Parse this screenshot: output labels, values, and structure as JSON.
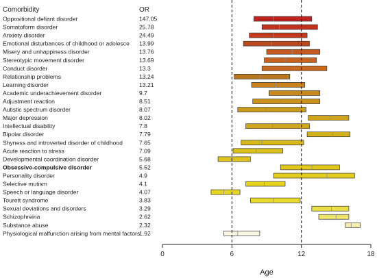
{
  "chart_data": {
    "type": "bar",
    "subtype": "floating-range",
    "headers": {
      "category": "Comorbidity",
      "value": "OR"
    },
    "xlabel": "Age",
    "xlim": [
      0,
      18
    ],
    "xticks": [
      0,
      6,
      12,
      18
    ],
    "reference_lines": [
      6,
      12
    ],
    "grid": false,
    "legend": "none",
    "rows": [
      {
        "label": "Oppositional defiant disorder",
        "or": "147.05",
        "start": 7.9,
        "median": 9.6,
        "end": 12.9,
        "color": "#c0231f",
        "bold": false
      },
      {
        "label": "Somatoform disorder",
        "or": "25.78",
        "start": 8.6,
        "median": 10.1,
        "end": 13.4,
        "color": "#c0311e",
        "bold": false
      },
      {
        "label": "Anxiety disorder",
        "or": "24.49",
        "start": 7.5,
        "median": 9.6,
        "end": 12.5,
        "color": "#c23a1f",
        "bold": false
      },
      {
        "label": "Emotional disturbances of childhood or adolesce",
        "or": "13.99",
        "start": 7.0,
        "median": 9.4,
        "end": 12.7,
        "color": "#b84a1e",
        "bold": false
      },
      {
        "label": "Misery and unhappiness disorder",
        "or": "13.76",
        "start": 9.0,
        "median": 11.2,
        "end": 13.6,
        "color": "#c65a1f",
        "bold": false
      },
      {
        "label": "Stereotypic movement disorder",
        "or": "13.69",
        "start": 8.8,
        "median": 10.6,
        "end": 13.3,
        "color": "#c8621e",
        "bold": false
      },
      {
        "label": "Conduct disorder",
        "or": "13.3",
        "start": 8.6,
        "median": 11.4,
        "end": 14.2,
        "color": "#c96b1e",
        "bold": false
      },
      {
        "label": "Relationship problems",
        "or": "13.24",
        "start": 6.2,
        "median": 8.4,
        "end": 11.0,
        "color": "#b8761e",
        "bold": false
      },
      {
        "label": "Learning disorder",
        "or": "13.21",
        "start": 7.7,
        "median": 9.8,
        "end": 12.3,
        "color": "#c9801e",
        "bold": false
      },
      {
        "label": "Academic underachievement disorder",
        "or": "9.7",
        "start": 9.2,
        "median": 11.5,
        "end": 13.6,
        "color": "#c98a1d",
        "bold": false
      },
      {
        "label": "Adjustment reaction",
        "or": "8.51",
        "start": 7.8,
        "median": 10.2,
        "end": 13.6,
        "color": "#c9921d",
        "bold": false
      },
      {
        "label": "Autistic spectrum disorder",
        "or": "8.07",
        "start": 6.5,
        "median": 8.9,
        "end": 12.4,
        "color": "#c99a1d",
        "bold": false
      },
      {
        "label": "Major depression",
        "or": "8.02",
        "start": 12.6,
        "median": 14.5,
        "end": 16.1,
        "color": "#cfa31d",
        "bold": false
      },
      {
        "label": " Intellectual disability",
        "or": "7.8",
        "start": 7.2,
        "median": 9.5,
        "end": 12.7,
        "color": "#d1a81d",
        "bold": false
      },
      {
        "label": "Bipolar disorder",
        "or": "7.79",
        "start": 12.5,
        "median": 14.7,
        "end": 16.2,
        "color": "#d3b21c",
        "bold": false
      },
      {
        "label": "Shyness and introverted disorder of childhood",
        "or": "7.65",
        "start": 6.8,
        "median": 8.6,
        "end": 12.2,
        "color": "#d5b81c",
        "bold": false
      },
      {
        "label": "Acute reaction to stress",
        "or": "7.09",
        "start": 6.1,
        "median": 8.1,
        "end": 10.4,
        "color": "#d9bf1c",
        "bold": false
      },
      {
        "label": "Developmental coordination disorder",
        "or": "5.68",
        "start": 4.8,
        "median": 6.0,
        "end": 7.6,
        "color": "#dcc31d",
        "bold": false
      },
      {
        "label": "Obsessive-compulsive disorder",
        "or": "5.52",
        "start": 10.2,
        "median": 12.9,
        "end": 15.3,
        "color": "#dfc71d",
        "bold": true
      },
      {
        "label": "Personality disorder",
        "or": "4.9",
        "start": 9.6,
        "median": 14.2,
        "end": 16.6,
        "color": "#e3cd1e",
        "bold": false
      },
      {
        "label": "Selective mutism",
        "or": "4.1",
        "start": 7.2,
        "median": 8.8,
        "end": 10.6,
        "color": "#e5d31f",
        "bold": false
      },
      {
        "label": "Speech or language disorder",
        "or": "4.07",
        "start": 4.2,
        "median": 5.3,
        "end": 6.7,
        "color": "#e8d722",
        "bold": false
      },
      {
        "label": "Tourett syndrome",
        "or": "3.83",
        "start": 7.6,
        "median": 9.6,
        "end": 11.9,
        "color": "#eadb2a",
        "bold": false
      },
      {
        "label": "Sexual deviations and disorders",
        "or": "3.29",
        "start": 12.9,
        "median": 14.6,
        "end": 16.1,
        "color": "#ede14a",
        "bold": false
      },
      {
        "label": "Schizophreina",
        "or": "2.62",
        "start": 13.5,
        "median": 15.0,
        "end": 16.1,
        "color": "#efe46a",
        "bold": false
      },
      {
        "label": "Substance abuse",
        "or": "2.32",
        "start": 15.8,
        "median": 16.3,
        "end": 17.1,
        "color": "#f5ecb0",
        "bold": false
      },
      {
        "label": "Physiological malfunction arising from mental factors",
        "or": "1.92",
        "start": 5.3,
        "median": 6.5,
        "end": 8.4,
        "color": "#faf6e4",
        "bold": false
      }
    ]
  }
}
